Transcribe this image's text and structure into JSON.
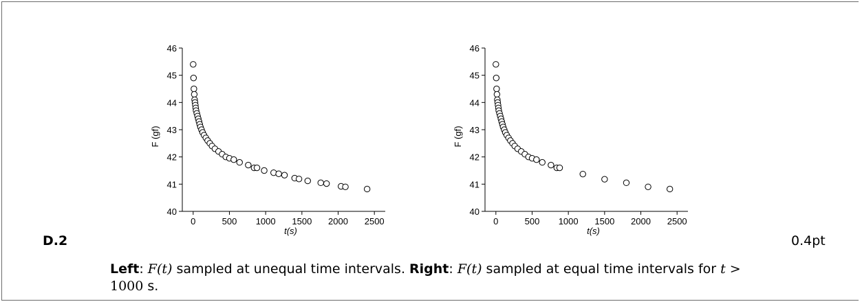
{
  "problem": {
    "label": "D.2",
    "score": "0.4pt"
  },
  "caption": {
    "left_bold": "Left",
    "left_rest_a": ": ",
    "left_math": "F(t)",
    "left_rest_b": " sampled at unequal time intervals. ",
    "right_bold": "Right",
    "right_rest_a": ": ",
    "right_math": "F(t)",
    "right_rest_b": " sampled at equal time intervals for ",
    "cond_var": "t",
    "cond_op": " > ",
    "cond_val": "1000",
    "cond_unit": " s."
  },
  "chart_data": [
    {
      "type": "scatter",
      "xlabel": "t(s)",
      "ylabel": "F (gf)",
      "xlim": [
        -150,
        2650
      ],
      "ylim": [
        40,
        46
      ],
      "xticks": [
        0,
        500,
        1000,
        1500,
        2000,
        2500
      ],
      "yticks": [
        40,
        41,
        42,
        43,
        44,
        45,
        46
      ],
      "marker": "open-circle",
      "points": [
        [
          0,
          45.4
        ],
        [
          5,
          44.9
        ],
        [
          10,
          44.5
        ],
        [
          15,
          44.3
        ],
        [
          20,
          44.1
        ],
        [
          25,
          44.0
        ],
        [
          30,
          43.9
        ],
        [
          35,
          43.8
        ],
        [
          40,
          43.7
        ],
        [
          50,
          43.6
        ],
        [
          60,
          43.5
        ],
        [
          70,
          43.4
        ],
        [
          80,
          43.3
        ],
        [
          90,
          43.2
        ],
        [
          100,
          43.1
        ],
        [
          115,
          43.0
        ],
        [
          130,
          42.9
        ],
        [
          150,
          42.8
        ],
        [
          175,
          42.7
        ],
        [
          200,
          42.6
        ],
        [
          230,
          42.5
        ],
        [
          260,
          42.4
        ],
        [
          300,
          42.3
        ],
        [
          350,
          42.2
        ],
        [
          400,
          42.1
        ],
        [
          450,
          42.0
        ],
        [
          500,
          41.95
        ],
        [
          560,
          41.9
        ],
        [
          640,
          41.8
        ],
        [
          760,
          41.7
        ],
        [
          840,
          41.6
        ],
        [
          880,
          41.6
        ],
        [
          980,
          41.5
        ],
        [
          1110,
          41.42
        ],
        [
          1180,
          41.38
        ],
        [
          1260,
          41.33
        ],
        [
          1400,
          41.22
        ],
        [
          1460,
          41.19
        ],
        [
          1580,
          41.12
        ],
        [
          1760,
          41.05
        ],
        [
          1840,
          41.02
        ],
        [
          2040,
          40.92
        ],
        [
          2100,
          40.9
        ],
        [
          2400,
          40.82
        ]
      ]
    },
    {
      "type": "scatter",
      "xlabel": "t(s)",
      "ylabel": "F (gf)",
      "xlim": [
        -150,
        2650
      ],
      "ylim": [
        40,
        46
      ],
      "xticks": [
        0,
        500,
        1000,
        1500,
        2000,
        2500
      ],
      "yticks": [
        40,
        41,
        42,
        43,
        44,
        45,
        46
      ],
      "marker": "open-circle",
      "points": [
        [
          0,
          45.4
        ],
        [
          5,
          44.9
        ],
        [
          10,
          44.5
        ],
        [
          15,
          44.3
        ],
        [
          20,
          44.1
        ],
        [
          25,
          44.0
        ],
        [
          30,
          43.9
        ],
        [
          35,
          43.8
        ],
        [
          40,
          43.7
        ],
        [
          50,
          43.6
        ],
        [
          60,
          43.5
        ],
        [
          70,
          43.4
        ],
        [
          80,
          43.3
        ],
        [
          90,
          43.2
        ],
        [
          100,
          43.1
        ],
        [
          115,
          43.0
        ],
        [
          130,
          42.9
        ],
        [
          150,
          42.8
        ],
        [
          175,
          42.7
        ],
        [
          200,
          42.6
        ],
        [
          230,
          42.5
        ],
        [
          260,
          42.4
        ],
        [
          300,
          42.3
        ],
        [
          350,
          42.2
        ],
        [
          400,
          42.1
        ],
        [
          450,
          42.0
        ],
        [
          500,
          41.95
        ],
        [
          560,
          41.9
        ],
        [
          640,
          41.8
        ],
        [
          760,
          41.7
        ],
        [
          840,
          41.6
        ],
        [
          880,
          41.6
        ],
        [
          1200,
          41.37
        ],
        [
          1500,
          41.18
        ],
        [
          1800,
          41.05
        ],
        [
          2100,
          40.9
        ],
        [
          2400,
          40.82
        ]
      ]
    }
  ]
}
